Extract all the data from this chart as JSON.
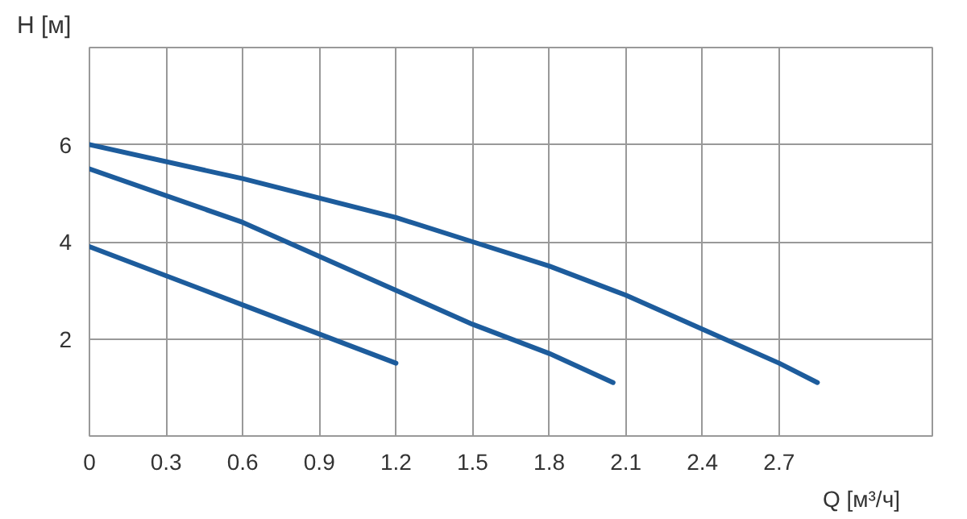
{
  "chart_data": {
    "type": "line",
    "ylabel": "H [м]",
    "xlabel": "Q [м³/ч]",
    "xlim": [
      0,
      3.3
    ],
    "ylim": [
      0,
      8
    ],
    "xticks": [
      0,
      0.3,
      0.6,
      0.9,
      1.2,
      1.5,
      1.8,
      2.1,
      2.4,
      2.7
    ],
    "yticks": [
      2,
      4,
      6
    ],
    "grid": true,
    "marker": "none",
    "line_style": "solid",
    "series": [
      {
        "color": "#1d5c9c",
        "x": [
          0,
          0.6,
          1.2,
          1.5,
          1.8,
          2.1,
          2.4,
          2.7,
          2.85
        ],
        "values": [
          6.0,
          5.3,
          4.5,
          4.0,
          3.5,
          2.9,
          2.2,
          1.5,
          1.1
        ]
      },
      {
        "color": "#1d5c9c",
        "x": [
          0,
          0.6,
          1.2,
          1.5,
          1.8,
          2.05
        ],
        "values": [
          5.5,
          4.4,
          3.0,
          2.3,
          1.7,
          1.1
        ]
      },
      {
        "color": "#1d5c9c",
        "x": [
          0,
          0.6,
          1.2
        ],
        "values": [
          3.9,
          2.7,
          1.5
        ]
      }
    ]
  }
}
